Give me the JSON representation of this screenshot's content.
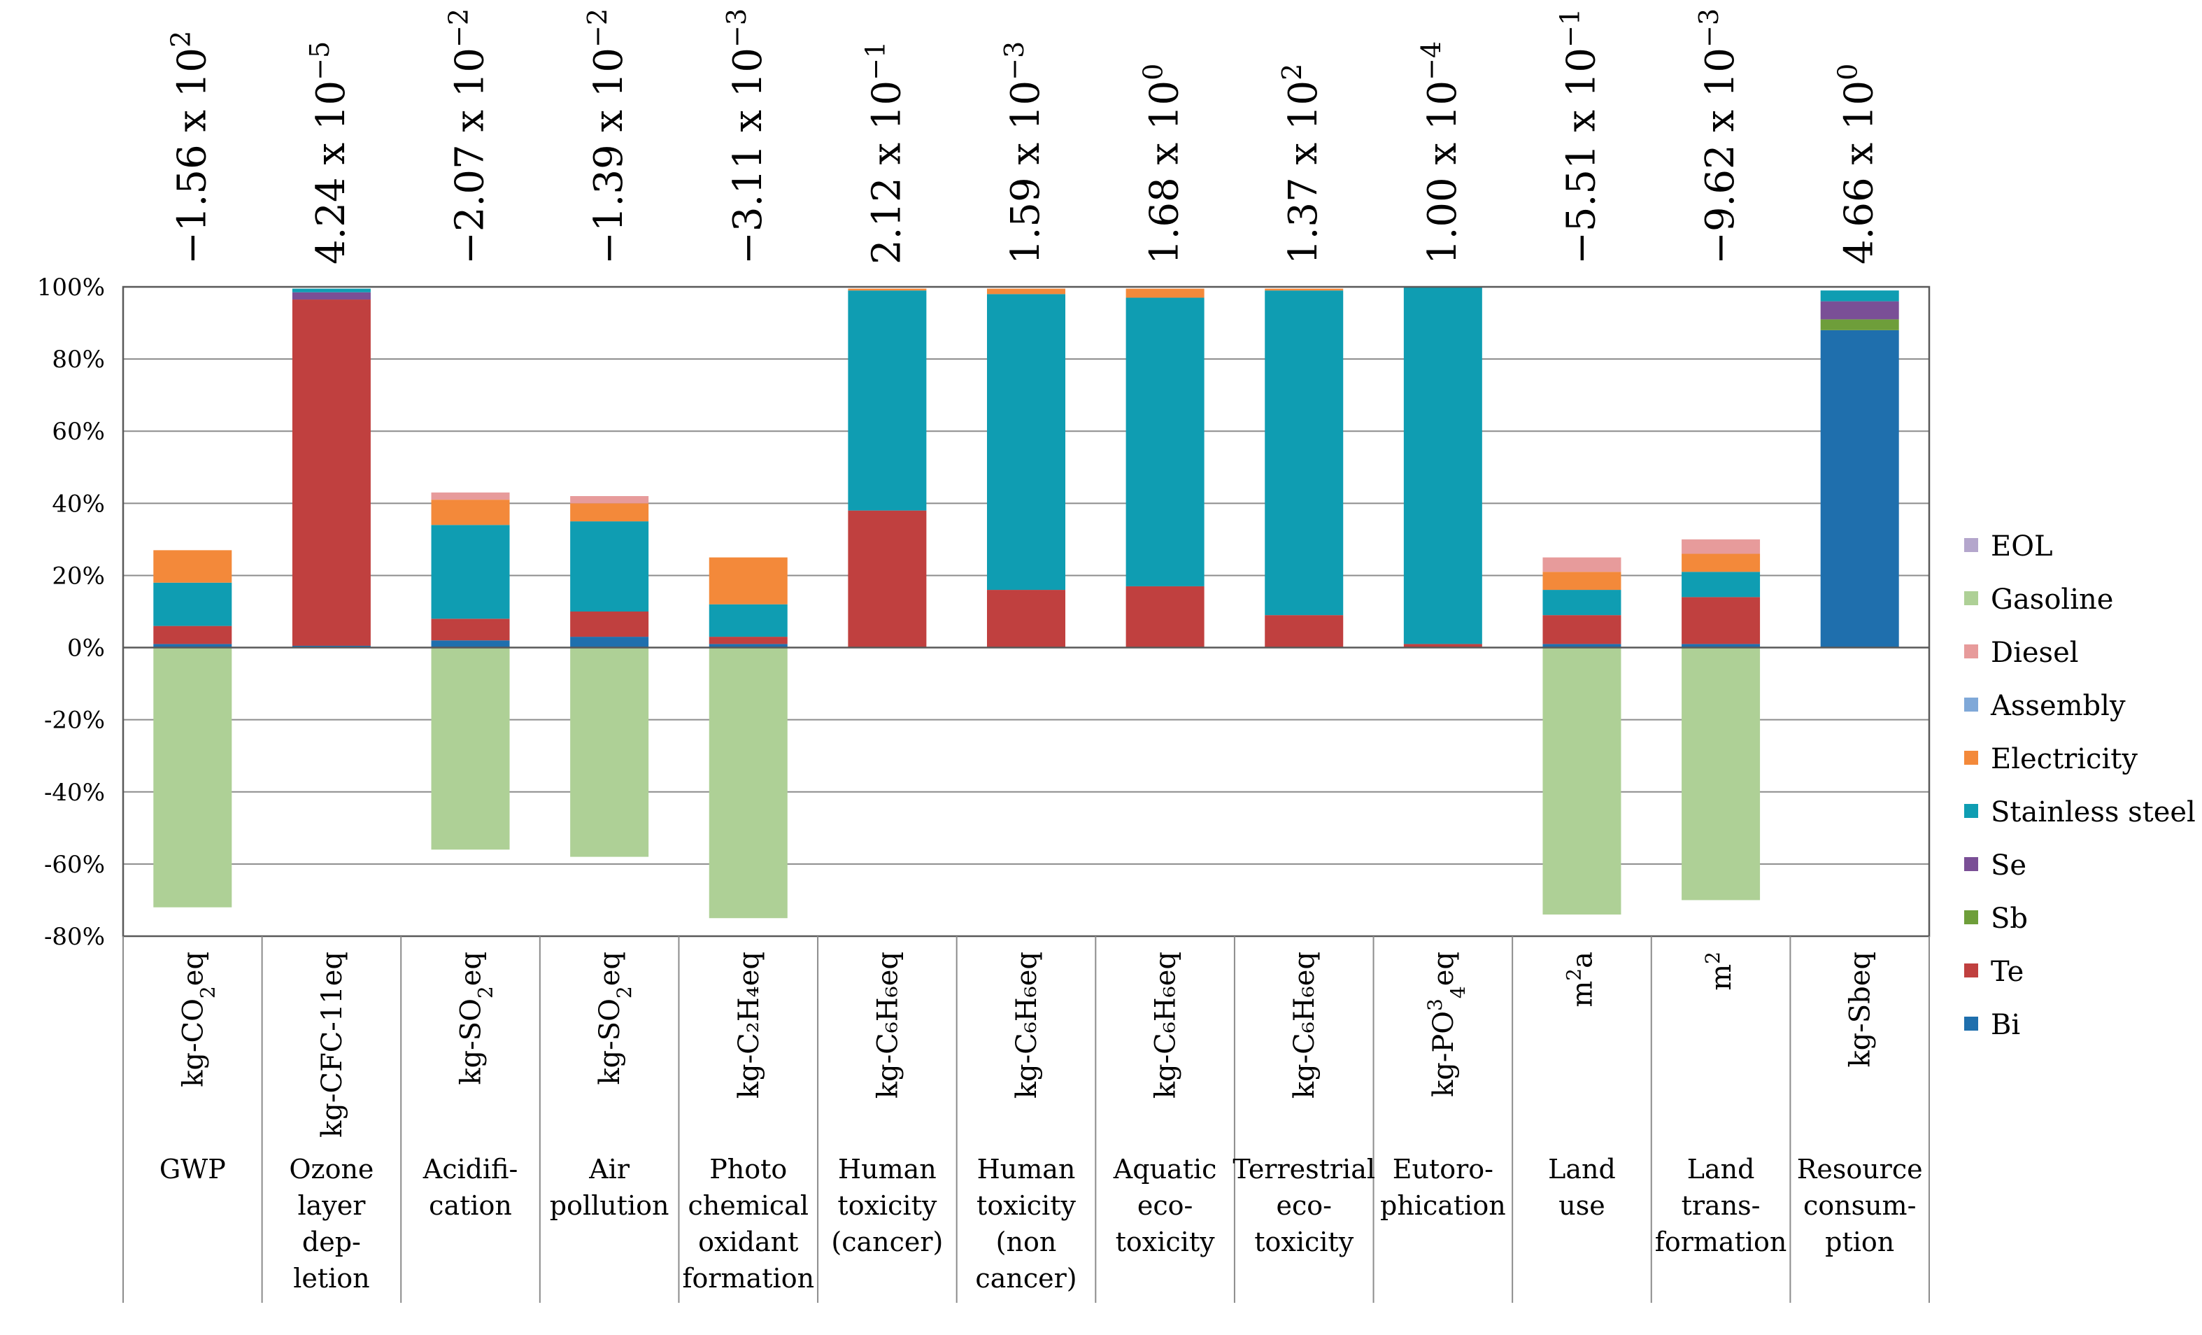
{
  "chart_data": {
    "type": "bar",
    "stacked": true,
    "percent_axis": true,
    "title": "",
    "xlabel": "",
    "ylabel": "",
    "ylim": [
      -80,
      100
    ],
    "yticks": [
      "100%",
      "80%",
      "60%",
      "40%",
      "20%",
      "0%",
      "-20%",
      "-40%",
      "-60%",
      "-80%"
    ],
    "categories": [
      {
        "name": [
          "GWP"
        ],
        "unit": {
          "base": "kg-CO",
          "sub": "2",
          "sup": "",
          "tail": "eq"
        },
        "total": {
          "mantissa": "−1.56 x 10",
          "exp": "2"
        }
      },
      {
        "name": [
          "Ozone",
          "layer",
          "dep-",
          "letion"
        ],
        "unit": {
          "base": "kg-CFC-11eq",
          "sub": "",
          "sup": "",
          "tail": ""
        },
        "total": {
          "mantissa": "4.24 x 10",
          "exp": "−5"
        }
      },
      {
        "name": [
          "Acidifi-",
          "cation"
        ],
        "unit": {
          "base": "kg-SO",
          "sub": "2",
          "sup": "",
          "tail": "eq"
        },
        "total": {
          "mantissa": "−2.07 x 10",
          "exp": "−2"
        }
      },
      {
        "name": [
          "Air",
          "pollution"
        ],
        "unit": {
          "base": "kg-SO",
          "sub": "2",
          "sup": "",
          "tail": "eq"
        },
        "total": {
          "mantissa": "−1.39 x 10",
          "exp": "−2"
        }
      },
      {
        "name": [
          "Photo",
          "chemical",
          "oxidant",
          "formation"
        ],
        "unit": {
          "base": "kg-C₂H₄eq",
          "sub": "",
          "sup": "",
          "tail": ""
        },
        "total": {
          "mantissa": "−3.11 x 10",
          "exp": "−3"
        }
      },
      {
        "name": [
          "Human",
          "toxicity",
          "(cancer)"
        ],
        "unit": {
          "base": "kg-C₆H₆eq",
          "sub": "",
          "sup": "",
          "tail": ""
        },
        "total": {
          "mantissa": "2.12 x 10",
          "exp": "−1"
        }
      },
      {
        "name": [
          "Human",
          "toxicity",
          "(non",
          "cancer)"
        ],
        "unit": {
          "base": "kg-C₆H₆eq",
          "sub": "",
          "sup": "",
          "tail": ""
        },
        "total": {
          "mantissa": "1.59 x 10",
          "exp": "−3"
        }
      },
      {
        "name": [
          "Aquatic",
          "eco-",
          "toxicity"
        ],
        "unit": {
          "base": "kg-C₆H₆eq",
          "sub": "",
          "sup": "",
          "tail": ""
        },
        "total": {
          "mantissa": "1.68 x 10",
          "exp": "0"
        }
      },
      {
        "name": [
          "Terrestrial",
          "eco-",
          "toxicity"
        ],
        "unit": {
          "base": "kg-C₆H₆eq",
          "sub": "",
          "sup": "",
          "tail": ""
        },
        "total": {
          "mantissa": "1.37 x 10",
          "exp": "2"
        }
      },
      {
        "name": [
          "Eutoro-",
          "phication"
        ],
        "unit": {
          "base": "kg-PO",
          "sub": "4",
          "sup": "3",
          "tail": "eq"
        },
        "total": {
          "mantissa": "1.00 x 10",
          "exp": "−4"
        }
      },
      {
        "name": [
          "Land",
          "use"
        ],
        "unit": {
          "base": "m",
          "sub": "",
          "sup": "2",
          "tail": "a"
        },
        "total": {
          "mantissa": "−5.51 x 10",
          "exp": "−1"
        }
      },
      {
        "name": [
          "Land",
          "trans-",
          "formation"
        ],
        "unit": {
          "base": "m",
          "sub": "",
          "sup": "2",
          "tail": ""
        },
        "total": {
          "mantissa": "−9.62 x 10",
          "exp": "−3"
        }
      },
      {
        "name": [
          "Resource",
          "consum-",
          "ption"
        ],
        "unit": {
          "base": "kg-Sbeq",
          "sub": "",
          "sup": "",
          "tail": ""
        },
        "total": {
          "mantissa": "4.66 x 10",
          "exp": "0"
        }
      }
    ],
    "series": [
      {
        "name": "Bi",
        "color": "#1f6fad",
        "values": [
          1,
          0.5,
          2,
          3,
          1,
          0,
          0,
          0,
          0,
          0,
          1,
          1,
          88
        ]
      },
      {
        "name": "Te",
        "color": "#c0403f",
        "values": [
          5,
          96,
          6,
          7,
          2,
          38,
          16,
          17,
          9,
          1,
          8,
          13,
          0
        ]
      },
      {
        "name": "Sb",
        "color": "#6e9e3a",
        "values": [
          0,
          0,
          0,
          0,
          0,
          0,
          0,
          0,
          0,
          0,
          0,
          0,
          3
        ]
      },
      {
        "name": "Se",
        "color": "#7a4f96",
        "values": [
          0,
          2,
          0,
          0,
          0,
          0,
          0,
          0,
          0,
          0,
          0,
          0,
          5
        ]
      },
      {
        "name": "Stainless steel",
        "color": "#0f9db2",
        "values": [
          12,
          1,
          26,
          25,
          9,
          61,
          82,
          80,
          90,
          99,
          7,
          7,
          3
        ]
      },
      {
        "name": "Electricity",
        "color": "#f3893a",
        "values": [
          9,
          0,
          7,
          5,
          13,
          0.5,
          1.5,
          2.5,
          0.5,
          0,
          5,
          5,
          0
        ]
      },
      {
        "name": "Assembly",
        "color": "#7fa8d8",
        "values": [
          0,
          0,
          0,
          0,
          0,
          0,
          0,
          0,
          0,
          0,
          0,
          0,
          0
        ]
      },
      {
        "name": "Diesel",
        "color": "#e79b9b",
        "values": [
          0,
          0,
          2,
          2,
          0,
          0,
          0,
          0,
          0,
          0,
          4,
          4,
          0
        ]
      },
      {
        "name": "Gasoline",
        "color": "#aed096",
        "values": [
          -72,
          0,
          -56,
          -58,
          -75,
          0,
          0,
          0,
          0,
          0,
          -74,
          -70,
          0
        ]
      },
      {
        "name": "EOL",
        "color": "#b4a6cc",
        "values": [
          0,
          0,
          0,
          0,
          0,
          0,
          0,
          0,
          0,
          0,
          0,
          0,
          0
        ]
      }
    ],
    "legend": {
      "placement": "right",
      "order": [
        "EOL",
        "Gasoline",
        "Diesel",
        "Assembly",
        "Electricity",
        "Stainless steel",
        "Se",
        "Sb",
        "Te",
        "Bi"
      ]
    }
  }
}
